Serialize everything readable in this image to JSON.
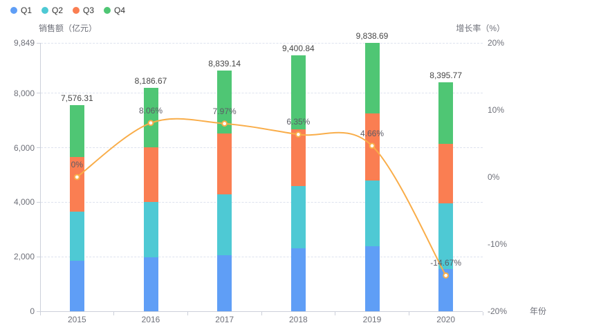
{
  "chart_data": {
    "type": "bar",
    "subtype": "stacked-bars-with-growth-line",
    "title": "",
    "categories": [
      "2015",
      "2016",
      "2017",
      "2018",
      "2019",
      "2020"
    ],
    "bar_series": [
      {
        "name": "Q1",
        "color": "#5f9ef6",
        "values": [
          1863,
          1975,
          2051,
          2312,
          2389,
          1543
        ]
      },
      {
        "name": "Q2",
        "color": "#4ec9d4",
        "values": [
          1804,
          2023,
          2251,
          2280,
          2414,
          2414
        ]
      },
      {
        "name": "Q3",
        "color": "#fa7e52",
        "values": [
          1999,
          2017,
          2221,
          2074,
          2457,
          2185
        ]
      },
      {
        "name": "Q4",
        "color": "#4fc674",
        "values": [
          1910.31,
          2171.67,
          2316.14,
          2734.84,
          2578.69,
          2253.77
        ]
      }
    ],
    "bar_totals": {
      "values": [
        7576.31,
        8186.67,
        8839.14,
        9400.84,
        9838.69,
        8395.77
      ],
      "labels": [
        "7,576.31",
        "8,186.67",
        "8,839.14",
        "9,400.84",
        "9,838.69",
        "8,395.77"
      ]
    },
    "line_series": {
      "name": "增长率",
      "color": "#f9ad49",
      "values_percent": [
        0,
        8.06,
        7.97,
        6.35,
        4.66,
        -14.67
      ],
      "labels": [
        "0%",
        "8.06%",
        "7.97%",
        "6.35%",
        "4.66%",
        "-14.67%"
      ],
      "marker": "empty-circle"
    },
    "left_axis": {
      "title": "销售额（亿元）",
      "max": 9849,
      "min": 0,
      "tick_values": [
        9849,
        8000,
        6000,
        4000,
        2000,
        0
      ],
      "tick_labels": [
        "9,849",
        "8,000",
        "6,000",
        "4,000",
        "2,000",
        "0"
      ]
    },
    "right_axis": {
      "title": "增长率（%）",
      "max": 20,
      "min": -20,
      "tick_values": [
        20,
        10,
        0,
        -10,
        -20
      ],
      "tick_labels": [
        "20%",
        "10%",
        "0%",
        "-10%",
        "-20%"
      ]
    },
    "x_axis": {
      "title": "年份",
      "labels": [
        "2015",
        "2016",
        "2017",
        "2018",
        "2019",
        "2020"
      ]
    },
    "legend": {
      "items": [
        {
          "label": "Q1",
          "color": "#5f9ef6"
        },
        {
          "label": "Q2",
          "color": "#4ec9d4"
        },
        {
          "label": "Q3",
          "color": "#fa7e52"
        },
        {
          "label": "Q4",
          "color": "#4fc674"
        }
      ],
      "position": "top-left"
    },
    "grid": {
      "dashed": true,
      "gridline_color": "#dde2ee",
      "axis_color": "#ccd0da"
    }
  }
}
